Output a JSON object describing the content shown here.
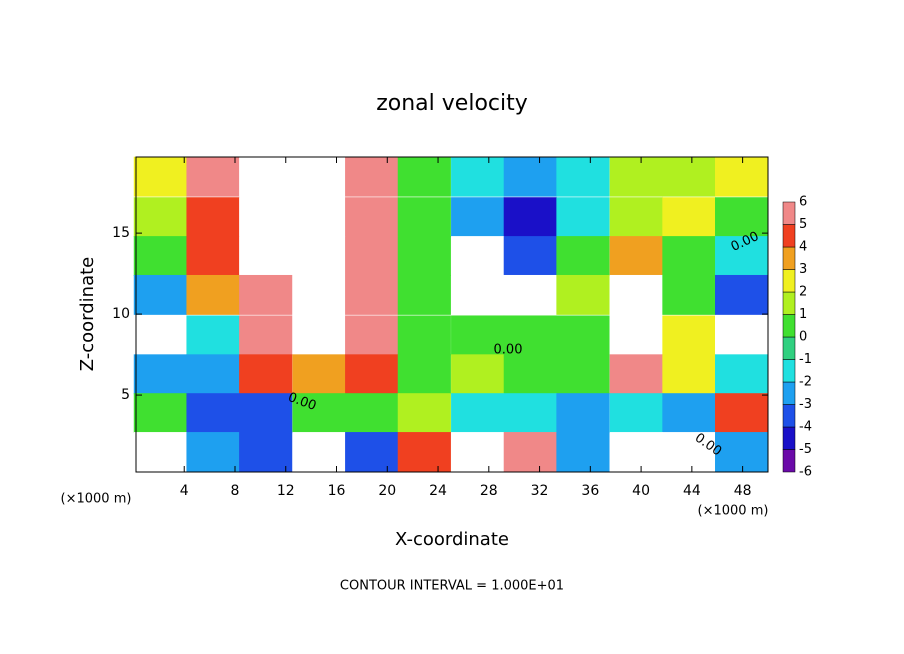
{
  "chart_data": {
    "type": "heatmap",
    "title": "zonal velocity",
    "x_label": "X-coordinate",
    "y_label": "Z-coordinate",
    "x_unit_labels": [
      "(×1000 m)",
      "(×1000 m)"
    ],
    "footer": "CONTOUR INTERVAL = 1.000E+01",
    "contour_labels": [
      "0.00",
      "0.00",
      "0.00",
      "0.00"
    ],
    "x": [
      2.1,
      6.25,
      10.4,
      14.6,
      18.75,
      22.9,
      27.1,
      31.25,
      35.4,
      39.6,
      43.75,
      47.9
    ],
    "y": [
      18.5,
      16,
      13.6,
      11.2,
      8.7,
      6.3,
      3.9,
      1.5
    ],
    "z": [
      [
        2,
        5,
        7,
        7,
        5,
        0,
        -2,
        -3,
        -2,
        1,
        1,
        2
      ],
      [
        1,
        4,
        7,
        7,
        5,
        0,
        -3,
        -5,
        -2,
        1,
        2,
        0
      ],
      [
        0,
        4,
        7,
        7,
        5,
        0,
        7,
        -4,
        0,
        3,
        0,
        -2
      ],
      [
        -3,
        3,
        6,
        7,
        5,
        0,
        7,
        7,
        1,
        7,
        0,
        -4
      ],
      [
        -7,
        -2,
        5,
        7,
        6,
        0,
        0,
        0,
        0,
        7,
        2,
        -7
      ],
      [
        -3,
        -3,
        4,
        3,
        4,
        0,
        1,
        0,
        0,
        5,
        2,
        -2
      ],
      [
        0,
        -4,
        -4,
        0,
        0,
        1,
        -2,
        -2,
        -3,
        -2,
        -3,
        4
      ],
      [
        -7,
        -3,
        -4,
        -7,
        -4,
        4,
        7,
        5,
        -3,
        7,
        7,
        -3
      ]
    ],
    "xlim": [
      0.2,
      50
    ],
    "ylim": [
      0.25,
      19.7
    ],
    "xticks": [
      4,
      8,
      12,
      16,
      20,
      24,
      28,
      32,
      36,
      40,
      44,
      48
    ],
    "yticks": [
      5,
      10,
      15
    ],
    "colorbar": {
      "ticks": [
        -6,
        -5,
        -4,
        -3,
        -2,
        -1,
        0,
        1,
        2,
        3,
        4,
        5,
        6
      ],
      "colors": [
        "#6a0aa8",
        "#1a10c8",
        "#1e50e8",
        "#1ea0f0",
        "#20e0e0",
        "#30d080",
        "#40e030",
        "#b0f020",
        "#f0f020",
        "#f0a020",
        "#f04020",
        "#f08888"
      ]
    }
  }
}
